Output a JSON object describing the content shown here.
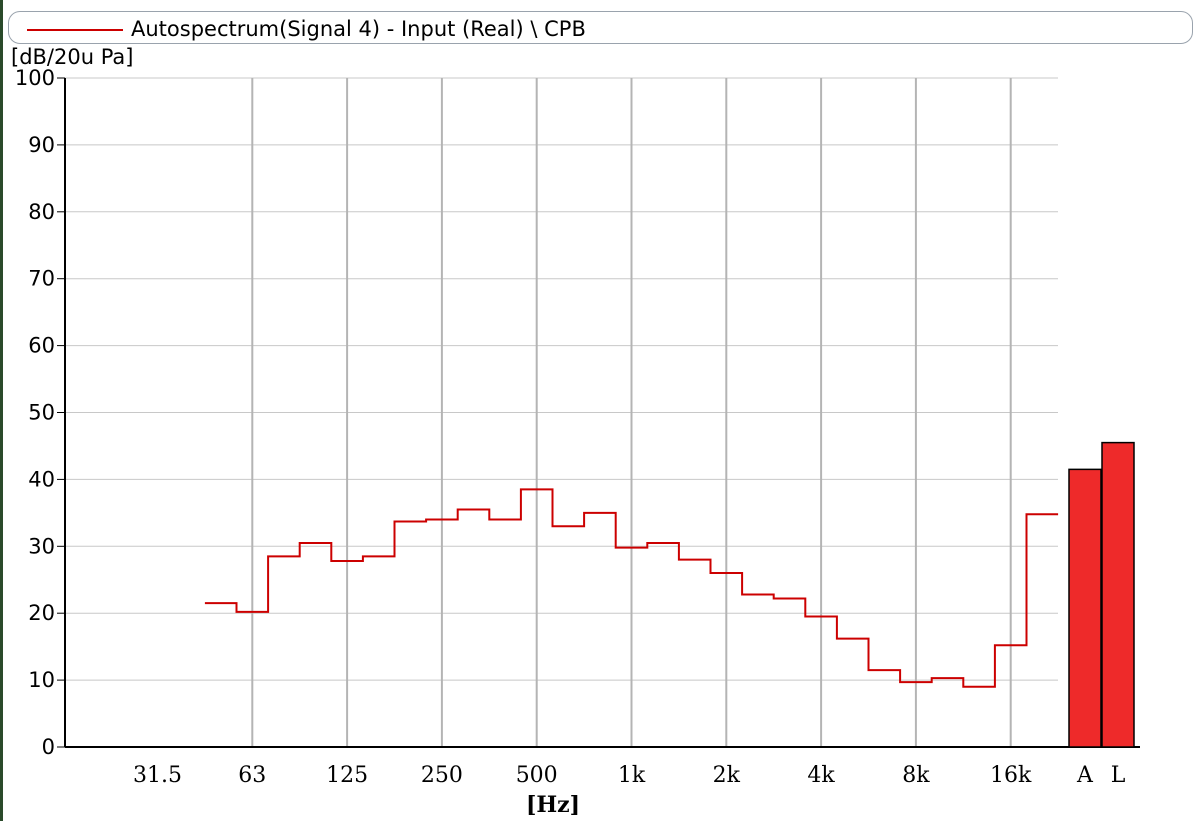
{
  "window": {
    "legend_label": "Autospectrum(Signal 4) - Input (Real) \\ CPB",
    "line_color": "#cc0000",
    "bar_color": "#ee2a2a"
  },
  "chart_data": {
    "type": "line",
    "subtype": "step",
    "title": "",
    "ylabel": "[dB/20u Pa]",
    "xlabel": "[Hz]",
    "ylim": [
      0,
      100
    ],
    "yticks": [
      0,
      10,
      20,
      30,
      40,
      50,
      60,
      70,
      80,
      90,
      100
    ],
    "grid": true,
    "legend": {
      "position": "top",
      "entries": [
        "Autospectrum(Signal 4) - Input (Real) \\ CPB"
      ]
    },
    "x_tick_labels": [
      "31.5",
      "63",
      "125",
      "250",
      "500",
      "1k",
      "2k",
      "4k",
      "8k",
      "16k"
    ],
    "series": [
      {
        "name": "Autospectrum(Signal 4) - Input (Real) \\ CPB",
        "bands_hz": [
          "50",
          "63",
          "80",
          "100",
          "125",
          "160",
          "200",
          "250",
          "315",
          "400",
          "500",
          "630",
          "800",
          "1k",
          "1.25k",
          "1.6k",
          "2k",
          "2.5k",
          "3.15k",
          "4k",
          "5k",
          "6.3k",
          "8k",
          "10k",
          "12.5k",
          "16k",
          "20k"
        ],
        "values": [
          21.5,
          20.2,
          28.5,
          30.5,
          27.8,
          28.5,
          33.7,
          34.0,
          35.5,
          34.0,
          38.5,
          33.0,
          35.0,
          29.8,
          30.5,
          28.0,
          26.0,
          22.8,
          22.2,
          19.5,
          16.2,
          11.5,
          9.7,
          10.3,
          9.0,
          15.2,
          34.8
        ]
      }
    ],
    "overall_bars": [
      {
        "label": "A",
        "value": 41.5
      },
      {
        "label": "L",
        "value": 45.5
      }
    ]
  }
}
